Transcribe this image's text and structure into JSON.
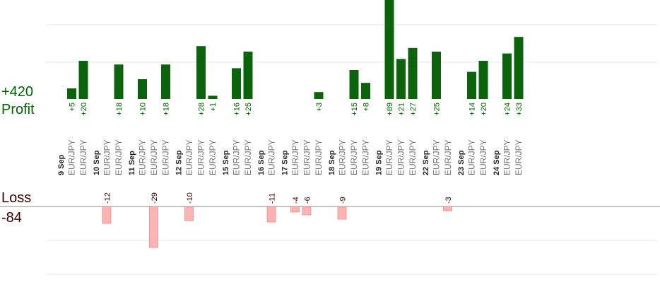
{
  "summary": {
    "profit_total": "+420",
    "profit_label": "Profit",
    "loss_label": "Loss",
    "loss_total": "-84"
  },
  "colors": {
    "profit_bar": "#0b640b",
    "profit_text": "#006400",
    "loss_bar": "#ffb3b3",
    "loss_bar_border": "#e07070",
    "loss_text": "#3a0000",
    "day_text": "#222222",
    "pair_text": "#777777",
    "grid": "#e6e6e6",
    "axis": "#888888"
  },
  "chart_data": {
    "type": "bar",
    "title": "",
    "xlabel": "",
    "ylabel": "",
    "grid": true,
    "days": [
      {
        "label": "9 Sep",
        "trades": [
          {
            "pair": "EUR/JPY",
            "value": 5,
            "label": "+5"
          },
          {
            "pair": "EUR/JPY",
            "value": 20,
            "label": "+20"
          }
        ]
      },
      {
        "label": "10 Sep",
        "trades": [
          {
            "pair": "EUR/JPY",
            "value": -12,
            "label": "-12"
          },
          {
            "pair": "EUR/JPY",
            "value": 18,
            "label": "+18"
          }
        ]
      },
      {
        "label": "11 Sep",
        "trades": [
          {
            "pair": "EUR/JPY",
            "value": 10,
            "label": "+10"
          },
          {
            "pair": "EUR/JPY",
            "value": -29,
            "label": "-29"
          },
          {
            "pair": "EUR/JPY",
            "value": 18,
            "label": "+18"
          }
        ]
      },
      {
        "label": "12 Sep",
        "trades": [
          {
            "pair": "EUR/JPY",
            "value": -10,
            "label": "-10"
          },
          {
            "pair": "EUR/JPY",
            "value": 28,
            "label": "+28"
          },
          {
            "pair": "EUR/JPY",
            "value": 1,
            "label": "+1"
          }
        ]
      },
      {
        "label": "15 Sep",
        "trades": [
          {
            "pair": "EUR/JPY",
            "value": 16,
            "label": "+16"
          },
          {
            "pair": "EUR/JPY",
            "value": 25,
            "label": "+25"
          }
        ]
      },
      {
        "label": "16 Sep",
        "trades": [
          {
            "pair": "EUR/JPY",
            "value": -11,
            "label": "-11"
          }
        ]
      },
      {
        "label": "17 Sep",
        "trades": [
          {
            "pair": "EUR/JPY",
            "value": -4,
            "label": "-4"
          },
          {
            "pair": "EUR/JPY",
            "value": -6,
            "label": "-6"
          },
          {
            "pair": "EUR/JPY",
            "value": 3,
            "label": "+3"
          }
        ]
      },
      {
        "label": "18 Sep",
        "trades": [
          {
            "pair": "EUR/JPY",
            "value": -9,
            "label": "-9"
          },
          {
            "pair": "EUR/JPY",
            "value": 15,
            "label": "+15"
          },
          {
            "pair": "EUR/JPY",
            "value": 8,
            "label": "+8"
          }
        ]
      },
      {
        "label": "19 Sep",
        "trades": [
          {
            "pair": "EUR/JPY",
            "value": 89,
            "label": "+89"
          },
          {
            "pair": "EUR/JPY",
            "value": 21,
            "label": "+21"
          },
          {
            "pair": "EUR/JPY",
            "value": 27,
            "label": "+27"
          }
        ]
      },
      {
        "label": "22 Sep",
        "trades": [
          {
            "pair": "EUR/JPY",
            "value": 25,
            "label": "+25"
          },
          {
            "pair": "EUR/JPY",
            "value": -3,
            "label": "-3"
          }
        ]
      },
      {
        "label": "23 Sep",
        "trades": [
          {
            "pair": "EUR/JPY",
            "value": 14,
            "label": "+14"
          },
          {
            "pair": "EUR/JPY",
            "value": 20,
            "label": "+20"
          }
        ]
      },
      {
        "label": "24 Sep",
        "trades": [
          {
            "pair": "EUR/JPY",
            "value": 24,
            "label": "+24"
          },
          {
            "pair": "EUR/JPY",
            "value": 33,
            "label": "+33"
          }
        ]
      }
    ]
  }
}
